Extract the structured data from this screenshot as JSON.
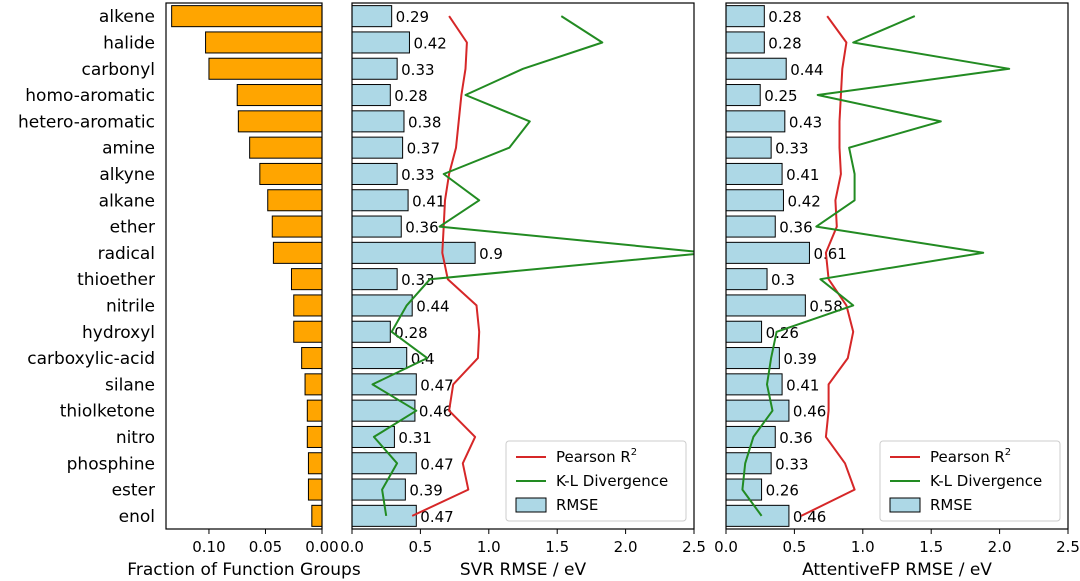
{
  "chart_data": [
    {
      "type": "bar",
      "orientation": "horizontal",
      "title": "",
      "xlabel": "Fraction of Function Groups",
      "ylabel": "",
      "x_inverted": true,
      "xlim": [
        0.138,
        0.0
      ],
      "xticks": [
        0.1,
        0.05,
        0.0
      ],
      "xtick_labels": [
        "0.10",
        "0.05",
        "0.00"
      ],
      "bar_color": "#ffa500",
      "categories": [
        "alkene",
        "halide",
        "carbonyl",
        "homo-aromatic",
        "hetero-aromatic",
        "amine",
        "alkyne",
        "alkane",
        "ether",
        "radical",
        "thioether",
        "nitrile",
        "hydroxyl",
        "carboxylic-acid",
        "silane",
        "thiolketone",
        "nitro",
        "phosphine",
        "ester",
        "enol"
      ],
      "values": [
        0.133,
        0.103,
        0.1,
        0.075,
        0.074,
        0.064,
        0.055,
        0.048,
        0.044,
        0.043,
        0.027,
        0.025,
        0.025,
        0.018,
        0.015,
        0.013,
        0.013,
        0.012,
        0.012,
        0.009
      ]
    },
    {
      "type": "bar",
      "orientation": "horizontal",
      "title": "",
      "xlabel": "SVR RMSE / eV",
      "xlim": [
        0.0,
        2.5
      ],
      "xticks": [
        0.0,
        0.5,
        1.0,
        1.5,
        2.0,
        2.5
      ],
      "xtick_labels": [
        "0.0",
        "0.5",
        "1.0",
        "1.5",
        "2.0",
        "2.5"
      ],
      "bar_color": "#add8e6",
      "categories": [
        "alkene",
        "halide",
        "carbonyl",
        "homo-aromatic",
        "hetero-aromatic",
        "amine",
        "alkyne",
        "alkane",
        "ether",
        "radical",
        "thioether",
        "nitrile",
        "hydroxyl",
        "carboxylic-acid",
        "silane",
        "thiolketone",
        "nitro",
        "phosphine",
        "ester",
        "enol"
      ],
      "values": [
        0.29,
        0.42,
        0.33,
        0.28,
        0.38,
        0.37,
        0.33,
        0.41,
        0.36,
        0.9,
        0.33,
        0.44,
        0.28,
        0.4,
        0.47,
        0.46,
        0.31,
        0.47,
        0.39,
        0.47
      ],
      "value_labels": [
        "0.29",
        "0.42",
        "0.33",
        "0.28",
        "0.38",
        "0.37",
        "0.33",
        "0.41",
        "0.36",
        "0.9",
        "0.33",
        "0.44",
        "0.28",
        "0.4",
        "0.47",
        "0.46",
        "0.31",
        "0.47",
        "0.39",
        "0.47"
      ],
      "series": [
        {
          "name": "Pearson R",
          "superscript": "2",
          "color": "#d62728",
          "values": [
            0.71,
            0.84,
            0.83,
            0.8,
            0.78,
            0.76,
            0.71,
            0.68,
            0.67,
            0.66,
            0.7,
            0.91,
            0.93,
            0.92,
            0.74,
            0.71,
            0.9,
            0.81,
            0.85,
            0.44
          ]
        },
        {
          "name": "K-L Divergence",
          "color": "#228b22",
          "values": [
            1.53,
            1.83,
            1.25,
            0.83,
            1.3,
            1.15,
            0.67,
            0.93,
            0.64,
            2.6,
            0.57,
            0.4,
            0.29,
            0.55,
            0.15,
            0.47,
            0.16,
            0.33,
            0.22,
            0.25
          ]
        }
      ],
      "legend": {
        "position": "bottom-right",
        "entries": [
          "Pearson R",
          "K-L Divergence",
          "RMSE"
        ]
      }
    },
    {
      "type": "bar",
      "orientation": "horizontal",
      "title": "",
      "xlabel": "AttentiveFP RMSE / eV",
      "xlim": [
        0.0,
        2.5
      ],
      "xticks": [
        0.0,
        0.5,
        1.0,
        1.5,
        2.0,
        2.5
      ],
      "xtick_labels": [
        "0.0",
        "0.5",
        "1.0",
        "1.5",
        "2.0",
        "2.5"
      ],
      "bar_color": "#add8e6",
      "categories": [
        "alkene",
        "halide",
        "carbonyl",
        "homo-aromatic",
        "hetero-aromatic",
        "amine",
        "alkyne",
        "alkane",
        "ether",
        "radical",
        "thioether",
        "nitrile",
        "hydroxyl",
        "carboxylic-acid",
        "silane",
        "thiolketone",
        "nitro",
        "phosphine",
        "ester",
        "enol"
      ],
      "values": [
        0.28,
        0.28,
        0.44,
        0.25,
        0.43,
        0.33,
        0.41,
        0.42,
        0.36,
        0.61,
        0.3,
        0.58,
        0.26,
        0.39,
        0.41,
        0.46,
        0.36,
        0.33,
        0.26,
        0.46
      ],
      "value_labels": [
        "0.28",
        "0.28",
        "0.44",
        "0.25",
        "0.43",
        "0.33",
        "0.41",
        "0.42",
        "0.36",
        "0.61",
        "0.3",
        "0.58",
        "0.26",
        "0.39",
        "0.41",
        "0.46",
        "0.36",
        "0.33",
        "0.26",
        "0.46"
      ],
      "series": [
        {
          "name": "Pearson R",
          "superscript": "2",
          "color": "#d62728",
          "values": [
            0.74,
            0.88,
            0.85,
            0.84,
            0.83,
            0.83,
            0.84,
            0.8,
            0.81,
            0.73,
            0.75,
            0.88,
            0.93,
            0.89,
            0.75,
            0.75,
            0.73,
            0.87,
            0.94,
            0.55
          ]
        },
        {
          "name": "K-L Divergence",
          "color": "#228b22",
          "values": [
            1.38,
            0.93,
            2.07,
            0.67,
            1.57,
            0.9,
            0.94,
            0.94,
            0.66,
            1.88,
            0.69,
            0.93,
            0.37,
            0.33,
            0.3,
            0.34,
            0.2,
            0.14,
            0.12,
            0.26
          ]
        }
      ],
      "legend": {
        "position": "bottom-right",
        "entries": [
          "Pearson R",
          "K-L Divergence",
          "RMSE"
        ]
      }
    }
  ]
}
